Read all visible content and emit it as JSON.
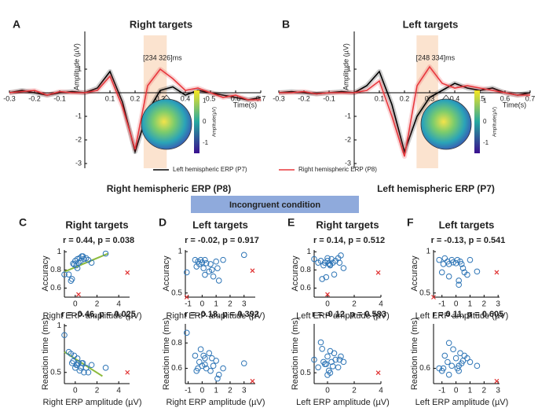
{
  "chart_data": [
    {
      "type": "line",
      "panel": "A",
      "title": "Right targets",
      "annotation": "[234 326]ms",
      "window": [
        0.234,
        0.326
      ],
      "xlabel": "Time(s)",
      "ylabel": "Amplitude (µV)",
      "x": [
        -0.3,
        -0.25,
        -0.2,
        -0.15,
        -0.1,
        -0.05,
        0,
        0.05,
        0.1,
        0.15,
        0.2,
        0.25,
        0.3,
        0.35,
        0.4,
        0.45,
        0.5,
        0.55,
        0.6,
        0.65,
        0.7
      ],
      "xlim": [
        -0.3,
        0.7
      ],
      "xticks": [
        -0.3,
        -0.2,
        -0.1,
        0.1,
        0.2,
        0.3,
        0.4,
        0.5,
        0.6,
        0.7
      ],
      "ylim": [
        -3.2,
        2.6
      ],
      "yticks": [
        1,
        -1,
        -2,
        -3
      ],
      "colorbar": {
        "label": "Amplitude(µV)",
        "lim": [
          -1.5,
          1.5
        ],
        "ticks": [
          1,
          0,
          -1
        ]
      },
      "series": [
        {
          "name": "Left hemispheric ERP (P7)",
          "color": "#000000",
          "values": [
            0,
            0.1,
            0,
            -0.1,
            0,
            0.05,
            0,
            0.2,
            0.9,
            -0.4,
            -2.5,
            -0.8,
            0.1,
            0.25,
            -0.1,
            0.1,
            0,
            -0.1,
            -0.2,
            -0.3,
            -0.2
          ]
        },
        {
          "name": "Right hemispheric ERP (P8)",
          "color": "#e8383d",
          "values": [
            0,
            0.05,
            0.1,
            -0.1,
            0.05,
            0,
            0,
            0.1,
            0.7,
            -0.6,
            -2.4,
            0.3,
            1.0,
            0.6,
            0.1,
            0.2,
            0,
            -0.2,
            -0.1,
            -0.3,
            -0.3
          ]
        }
      ]
    },
    {
      "type": "line",
      "panel": "B",
      "title": "Left targets",
      "annotation": "[248 334]ms",
      "window": [
        0.248,
        0.334
      ],
      "xlabel": "Time(s)",
      "ylabel": "Amplitude (µV)",
      "x": [
        -0.3,
        -0.25,
        -0.2,
        -0.15,
        -0.1,
        -0.05,
        0,
        0.05,
        0.1,
        0.15,
        0.2,
        0.25,
        0.3,
        0.35,
        0.4,
        0.45,
        0.5,
        0.55,
        0.6,
        0.65,
        0.7
      ],
      "xlim": [
        -0.3,
        0.7
      ],
      "xticks": [
        -0.3,
        -0.2,
        -0.1,
        0.1,
        0.2,
        0.3,
        0.4,
        0.5,
        0.6,
        0.7
      ],
      "ylim": [
        -3.2,
        2.6
      ],
      "yticks": [
        1,
        -1,
        -2,
        -3
      ],
      "colorbar": {
        "label": "Amplitude(µV)",
        "lim": [
          -1.5,
          1.5
        ],
        "ticks": [
          1,
          0,
          -1
        ]
      },
      "series": [
        {
          "color": "#000000",
          "values": [
            0,
            0.05,
            0,
            -0.05,
            0,
            0.05,
            0,
            0.3,
            0.9,
            -0.5,
            -2.5,
            -1.0,
            -0.2,
            0.1,
            0.4,
            0.2,
            0.1,
            0.2,
            0,
            -0.1,
            0
          ]
        },
        {
          "color": "#e8383d",
          "values": [
            0,
            0,
            0.05,
            -0.05,
            0,
            0,
            0,
            0.1,
            0.5,
            -1.0,
            -2.7,
            0.3,
            1.1,
            0.4,
            0.2,
            0.3,
            0.2,
            0.1,
            0,
            -0.1,
            -0.1
          ]
        }
      ]
    },
    {
      "type": "scatter",
      "panel": "C",
      "title": "Right targets",
      "stat": "r = 0.44, p = 0.038",
      "xlabel": "Right ERP amplitude (µV)",
      "ylabel": "Accuracy",
      "color": "#2e75b6",
      "xlim": [
        -1,
        5
      ],
      "xticks": [
        0,
        2,
        4
      ],
      "ylim": [
        0.5,
        1.02
      ],
      "yticks": [
        0.6,
        0.8,
        1
      ],
      "x": [
        -1,
        -0.6,
        -0.3,
        -0.2,
        0,
        0.1,
        0.2,
        0.3,
        0.4,
        0.5,
        0.6,
        0.8,
        1,
        1.2,
        1.5,
        -0.4,
        0.2,
        0.7,
        2.8,
        -0.1
      ],
      "values": [
        0.75,
        0.75,
        0.7,
        0.87,
        0.9,
        0.85,
        0.92,
        0.88,
        0.93,
        0.9,
        0.95,
        0.92,
        0.93,
        0.91,
        0.88,
        0.68,
        0.82,
        0.95,
        0.98,
        0.86
      ],
      "outliers": {
        "color": "#e03030",
        "x": [
          4.8,
          0.3
        ],
        "values": [
          0.77,
          0.53
        ]
      },
      "fit": {
        "color": "#8dbb3c",
        "x": [
          -1,
          3
        ],
        "values": [
          0.78,
          0.98
        ]
      }
    },
    {
      "type": "scatter",
      "stat": "r = -0.46, p = 0.025",
      "xlabel": "Right ERP amplitude (µV)",
      "ylabel": "Reaction time (ms)",
      "color": "#2e75b6",
      "xlim": [
        -1,
        5
      ],
      "xticks": [
        0,
        2,
        4
      ],
      "ylim": [
        0.38,
        1.02
      ],
      "yticks": [
        0.5,
        1
      ],
      "x": [
        -1,
        -0.6,
        -0.3,
        -0.2,
        0,
        0.1,
        0.2,
        0.3,
        0.4,
        0.5,
        0.6,
        0.8,
        1,
        1.2,
        1.5,
        -0.4,
        0.2,
        0.7,
        2.8,
        -0.1
      ],
      "values": [
        0.9,
        0.72,
        0.6,
        0.62,
        0.55,
        0.58,
        0.65,
        0.6,
        0.52,
        0.55,
        0.6,
        0.5,
        0.55,
        0.5,
        0.58,
        0.7,
        0.58,
        0.6,
        0.55,
        0.68
      ],
      "outliers": {
        "color": "#e03030",
        "x": [
          4.8
        ],
        "values": [
          0.5
        ]
      },
      "fit": {
        "color": "#8dbb3c",
        "x": [
          -1,
          2.5
        ],
        "values": [
          0.72,
          0.46
        ]
      }
    },
    {
      "type": "scatter",
      "panel": "D",
      "title": "Left targets",
      "stat": "r = -0.02, p = 0.917",
      "xlabel": "Right ERP amplitude (µV)",
      "ylabel": "Accuracy",
      "color": "#2e75b6",
      "xlim": [
        -1.2,
        3.8
      ],
      "xticks": [
        -1,
        0,
        1,
        2,
        3
      ],
      "ylim": [
        0.45,
        1.02
      ],
      "yticks": [
        0.5,
        1
      ],
      "x": [
        -1.1,
        -0.5,
        -0.3,
        -0.2,
        0,
        0.1,
        0.2,
        0.3,
        0.5,
        0.6,
        0.8,
        1,
        1.2,
        1.5,
        -0.4,
        0.2,
        0.7,
        3,
        -0.1,
        1.1
      ],
      "values": [
        0.75,
        0.9,
        0.88,
        0.85,
        0.87,
        0.8,
        0.9,
        0.86,
        0.76,
        0.85,
        0.7,
        0.88,
        0.65,
        0.9,
        0.82,
        0.72,
        0.78,
        0.96,
        0.9,
        0.8
      ],
      "outliers": {
        "color": "#e03030",
        "x": [
          3.6,
          -1.1
        ],
        "values": [
          0.77,
          0.45
        ]
      }
    },
    {
      "type": "scatter",
      "stat": "r = -0.18, p = 0.392",
      "xlabel": "Right ERP amplitude (µV)",
      "ylabel": "Reaction time (ms)",
      "color": "#2e75b6",
      "xlim": [
        -1.2,
        3.8
      ],
      "xticks": [
        -1,
        0,
        1,
        2,
        3
      ],
      "ylim": [
        0.48,
        0.95
      ],
      "yticks": [
        0.6,
        0.8
      ],
      "x": [
        -1.1,
        -0.5,
        -0.3,
        -0.2,
        0,
        0.1,
        0.2,
        0.3,
        0.5,
        0.6,
        0.8,
        1,
        1.2,
        1.5,
        -0.4,
        0.2,
        0.7,
        3,
        -0.1,
        1.1
      ],
      "values": [
        0.88,
        0.7,
        0.6,
        0.65,
        0.62,
        0.7,
        0.68,
        0.6,
        0.72,
        0.58,
        0.62,
        0.66,
        0.55,
        0.6,
        0.58,
        0.63,
        0.68,
        0.64,
        0.75,
        0.52
      ],
      "outliers": {
        "color": "#e03030",
        "x": [
          3.6
        ],
        "values": [
          0.5
        ]
      }
    },
    {
      "type": "scatter",
      "panel": "E",
      "title": "Right targets",
      "stat": "r = 0.14, p = 0.512",
      "xlabel": "Left ERP amplitude (µV)",
      "ylabel": "Accuracy",
      "color": "#2e75b6",
      "xlim": [
        -1,
        4
      ],
      "xticks": [
        0,
        2,
        4
      ],
      "ylim": [
        0.5,
        1.02
      ],
      "yticks": [
        0.6,
        0.8,
        1
      ],
      "x": [
        -1,
        -0.7,
        -0.5,
        -0.3,
        -0.2,
        0,
        0.1,
        0.2,
        0.3,
        0.4,
        0.5,
        0.6,
        0.8,
        1,
        1.2,
        -0.4,
        0.2,
        -0.1,
        0,
        0.9
      ],
      "values": [
        0.92,
        0.88,
        0.9,
        0.85,
        0.88,
        0.9,
        0.87,
        0.85,
        0.92,
        0.88,
        0.75,
        0.9,
        0.93,
        0.96,
        0.82,
        0.7,
        0.86,
        0.72,
        0.93,
        0.88
      ],
      "outliers": {
        "color": "#e03030",
        "x": [
          3.8,
          0
        ],
        "values": [
          0.77,
          0.53
        ]
      }
    },
    {
      "type": "scatter",
      "stat": "r = -0.12, p = 0.583",
      "xlabel": "Left ERP amplitude (µV)",
      "ylabel": "Reaction time (ms)",
      "color": "#2e75b6",
      "xlim": [
        -1,
        4
      ],
      "xticks": [
        0,
        2,
        4
      ],
      "ylim": [
        0.4,
        0.95
      ],
      "yticks": [
        0.5
      ],
      "x": [
        -1,
        -0.7,
        -0.5,
        -0.3,
        -0.2,
        0,
        0.1,
        0.2,
        0.3,
        0.4,
        0.5,
        0.6,
        0.8,
        1,
        1.2,
        -0.4,
        0.2,
        -0.1,
        0,
        0.9
      ],
      "values": [
        0.62,
        0.55,
        0.78,
        0.6,
        0.58,
        0.65,
        0.52,
        0.7,
        0.6,
        0.56,
        0.68,
        0.62,
        0.55,
        0.65,
        0.6,
        0.72,
        0.5,
        0.58,
        0.48,
        0.62
      ],
      "outliers": {
        "color": "#e03030",
        "x": [
          3.8
        ],
        "values": [
          0.5
        ]
      }
    },
    {
      "type": "scatter",
      "panel": "F",
      "title": "Left targets",
      "stat": "r = -0.13, p = 0.541",
      "xlabel": "Left ERP amplitude (µV)",
      "ylabel": "Accuracy",
      "color": "#2e75b6",
      "xlim": [
        -1.6,
        3.1
      ],
      "xticks": [
        -1,
        0,
        1,
        2,
        3
      ],
      "ylim": [
        0.45,
        1.02
      ],
      "yticks": [
        0.5,
        1
      ],
      "x": [
        -1.2,
        -1,
        -0.8,
        -0.6,
        -0.5,
        -0.3,
        -0.2,
        0,
        0.1,
        0.2,
        0.3,
        0.5,
        0.6,
        0.8,
        1,
        1.5,
        -0.9,
        0.2,
        0.4,
        -0.5
      ],
      "values": [
        0.9,
        0.75,
        0.92,
        0.88,
        0.85,
        0.9,
        0.87,
        0.86,
        0.9,
        0.65,
        0.88,
        0.8,
        0.75,
        0.72,
        0.9,
        0.76,
        0.85,
        0.6,
        0.85,
        0.7
      ],
      "outliers": {
        "color": "#e03030",
        "x": [
          2.9,
          -1.6
        ],
        "values": [
          0.75,
          0.45
        ]
      }
    },
    {
      "type": "scatter",
      "stat": "r = 0.11, p = 0.605",
      "xlabel": "Left ERP amplitude (µV)",
      "ylabel": "Reaction time (ms)",
      "color": "#2e75b6",
      "xlim": [
        -1.6,
        3.1
      ],
      "xticks": [
        -1,
        0,
        1,
        2,
        3
      ],
      "ylim": [
        0.48,
        0.95
      ],
      "yticks": [
        0.6
      ],
      "x": [
        -1.2,
        -1,
        -0.8,
        -0.6,
        -0.5,
        -0.3,
        -0.2,
        0,
        0.1,
        0.2,
        0.3,
        0.5,
        0.6,
        0.8,
        1,
        1.5,
        -0.9,
        0.2,
        0.4,
        -0.5
      ],
      "values": [
        0.6,
        0.58,
        0.7,
        0.65,
        0.8,
        0.62,
        0.75,
        0.68,
        0.6,
        0.62,
        0.72,
        0.66,
        0.7,
        0.68,
        0.65,
        0.62,
        0.6,
        0.58,
        0.64,
        0.55
      ],
      "outliers": {
        "color": "#e03030",
        "x": [
          2.9
        ],
        "values": [
          0.5
        ]
      }
    }
  ],
  "sections": {
    "right": "Right hemispheric ERP (P8)",
    "left": "Left hemispheric ERP (P7)",
    "condition": "Incongruent condition"
  }
}
